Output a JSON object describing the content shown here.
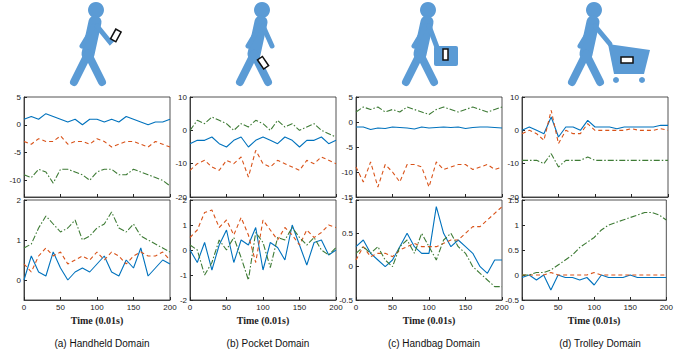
{
  "chart_data": [
    {
      "type": "line",
      "x": [
        0,
        10,
        20,
        30,
        40,
        50,
        60,
        70,
        80,
        90,
        100,
        110,
        120,
        130,
        140,
        150,
        160,
        170,
        180,
        190,
        200
      ],
      "xlim": [
        0,
        200
      ],
      "xticks": [
        0,
        50,
        100,
        150,
        200
      ],
      "ylim": [
        -13,
        5
      ],
      "yticks": [
        -10,
        -5,
        0,
        5
      ],
      "grid": false,
      "tick_labels": "y",
      "series": [
        {
          "color": "#0072BD",
          "line_style": "solid",
          "values": [
            1,
            1.5,
            1,
            2,
            1.5,
            1,
            0.5,
            1,
            0,
            1,
            1,
            0.5,
            1,
            0.5,
            1.5,
            1,
            0.5,
            0,
            0.5,
            0.5,
            1
          ]
        },
        {
          "color": "#D95319",
          "line_style": "dashed",
          "values": [
            -3,
            -3.5,
            -2.5,
            -3,
            -3,
            -2,
            -3.5,
            -3,
            -3,
            -3.5,
            -2.5,
            -3,
            -4,
            -3.5,
            -3,
            -3,
            -3.5,
            -4,
            -3,
            -3.5,
            -4
          ]
        },
        {
          "color": "#3E7B35",
          "line_style": "dashdot",
          "values": [
            -9,
            -9.5,
            -8,
            -8.5,
            -10.5,
            -8,
            -8,
            -8.5,
            -9,
            -10,
            -8.5,
            -8,
            -8,
            -9,
            -9,
            -8,
            -8.5,
            -9,
            -9.5,
            -10,
            -11
          ]
        }
      ]
    },
    {
      "type": "line",
      "x": [
        0,
        10,
        20,
        30,
        40,
        50,
        60,
        70,
        80,
        90,
        100,
        110,
        120,
        130,
        140,
        150,
        160,
        170,
        180,
        190,
        200
      ],
      "xlim": [
        0,
        200
      ],
      "xticks": [
        0,
        50,
        100,
        150,
        200
      ],
      "ylim": [
        -20,
        10
      ],
      "yticks": [
        -20,
        -10,
        0,
        10
      ],
      "grid": false,
      "tick_labels": "y",
      "series": [
        {
          "color": "#0072BD",
          "line_style": "solid",
          "values": [
            -4,
            -3,
            -3,
            -2,
            -4,
            -5,
            -3,
            -2,
            -5,
            -3,
            -2,
            -3,
            -4,
            -2,
            -3,
            -5,
            -3,
            -3,
            -2,
            -4,
            -3
          ]
        },
        {
          "color": "#D95319",
          "line_style": "dashed",
          "values": [
            -12,
            -10,
            -9,
            -11,
            -12,
            -9,
            -10,
            -8,
            -14,
            -6,
            -10,
            -11,
            -9,
            -10,
            -11,
            -12,
            -9,
            -10,
            -8,
            -9,
            -10
          ]
        },
        {
          "color": "#3E7B35",
          "line_style": "dashdot",
          "values": [
            0,
            3,
            2,
            4,
            3,
            2,
            0,
            2,
            1,
            3,
            2,
            0,
            3,
            1,
            2,
            0,
            1,
            2,
            0,
            -1,
            -2
          ]
        }
      ]
    },
    {
      "type": "line",
      "x": [
        0,
        10,
        20,
        30,
        40,
        50,
        60,
        70,
        80,
        90,
        100,
        110,
        120,
        130,
        140,
        150,
        160,
        170,
        180,
        190,
        200
      ],
      "xlim": [
        0,
        200
      ],
      "xticks": [
        0,
        50,
        100,
        150,
        200
      ],
      "ylim": [
        -15,
        5
      ],
      "yticks": [
        -15,
        -10,
        -5,
        0,
        5
      ],
      "grid": false,
      "tick_labels": "y",
      "series": [
        {
          "color": "#0072BD",
          "line_style": "solid",
          "values": [
            -1,
            -1,
            -1.5,
            -1.2,
            -1.3,
            -1,
            -1.1,
            -1.2,
            -1.4,
            -1,
            -1.2,
            -1.1,
            -1,
            -1.1,
            -1,
            -1.3,
            -1.1,
            -1,
            -1,
            -1.1,
            -1.2
          ]
        },
        {
          "color": "#D95319",
          "line_style": "dashed",
          "values": [
            -9,
            -12,
            -8,
            -13,
            -8.5,
            -10,
            -12,
            -8.5,
            -8.5,
            -9,
            -13,
            -8,
            -9.5,
            -9,
            -8.5,
            -8.5,
            -9.5,
            -9,
            -8.5,
            -9.5,
            -9
          ]
        },
        {
          "color": "#3E7B35",
          "line_style": "dashdot",
          "values": [
            2,
            3,
            2.5,
            3,
            2,
            2.5,
            2,
            3,
            2.5,
            2,
            1.5,
            2.5,
            3,
            2.5,
            2,
            2.5,
            3,
            2.5,
            2,
            2.5,
            3
          ]
        }
      ]
    },
    {
      "type": "line",
      "x": [
        0,
        10,
        20,
        30,
        40,
        50,
        60,
        70,
        80,
        90,
        100,
        110,
        120,
        130,
        140,
        150,
        160,
        170,
        180,
        190,
        200
      ],
      "xlim": [
        0,
        200
      ],
      "xticks": [
        0,
        50,
        100,
        150,
        200
      ],
      "ylim": [
        -20,
        10
      ],
      "yticks": [
        -20,
        -10,
        0,
        10
      ],
      "grid": false,
      "tick_labels": "y",
      "series": [
        {
          "color": "#0072BD",
          "line_style": "solid",
          "values": [
            0,
            1,
            0,
            -1,
            4,
            -2,
            1,
            1,
            0,
            3,
            1,
            1,
            1,
            0.5,
            1,
            1,
            1,
            1,
            1,
            1.5,
            1.5
          ]
        },
        {
          "color": "#D95319",
          "line_style": "dashed",
          "values": [
            -1,
            0,
            -1,
            -3,
            6,
            -4,
            0,
            -1,
            -1,
            2,
            0,
            0,
            0,
            0,
            0,
            0.5,
            0,
            0,
            0,
            0.5,
            0
          ]
        },
        {
          "color": "#3E7B35",
          "line_style": "dashdot",
          "values": [
            -9,
            -9,
            -9,
            -10,
            -7,
            -11,
            -9,
            -9,
            -9,
            -8,
            -9,
            -9,
            -9,
            -9,
            -9,
            -9,
            -9,
            -9,
            -9,
            -9,
            -9
          ]
        }
      ]
    },
    {
      "type": "line",
      "title": "(a) Handheld Domain",
      "xlabel": "Time (0.01s)",
      "x": [
        0,
        10,
        20,
        30,
        40,
        50,
        60,
        70,
        80,
        90,
        100,
        110,
        120,
        130,
        140,
        150,
        160,
        170,
        180,
        190,
        200
      ],
      "xlim": [
        0,
        200
      ],
      "xticks": [
        0,
        50,
        100,
        150,
        200
      ],
      "ylim": [
        -0.5,
        2
      ],
      "yticks": [
        0,
        1,
        2
      ],
      "grid": false,
      "series": [
        {
          "color": "#0072BD",
          "line_style": "solid",
          "values": [
            0,
            0.6,
            0.2,
            0.1,
            0.7,
            0.3,
            0,
            0.2,
            0.3,
            0.2,
            0.4,
            0.6,
            0.2,
            0.1,
            0.5,
            0.3,
            0.8,
            0.1,
            0.3,
            0.5,
            0.4
          ]
        },
        {
          "color": "#D95319",
          "line_style": "dashed",
          "values": [
            0.4,
            0.2,
            0.6,
            0.8,
            0.6,
            0.7,
            0.4,
            0.5,
            0.6,
            0.5,
            0.7,
            0.5,
            0.7,
            0.6,
            0.4,
            0.6,
            0.7,
            0.6,
            0.6,
            0.7,
            0.5
          ]
        },
        {
          "color": "#3E7B35",
          "line_style": "dashdot",
          "values": [
            0.8,
            0.9,
            1.3,
            1.6,
            1.4,
            1.2,
            1.3,
            1.5,
            1.0,
            1.1,
            1.3,
            1.4,
            1.7,
            1.3,
            1.2,
            1.4,
            1.1,
            1.0,
            0.9,
            0.8,
            0.7
          ]
        }
      ]
    },
    {
      "type": "line",
      "title": "(b) Pocket Domain",
      "xlabel": "Time (0.01s)",
      "x": [
        0,
        10,
        20,
        30,
        40,
        50,
        60,
        70,
        80,
        90,
        100,
        110,
        120,
        130,
        140,
        150,
        160,
        170,
        180,
        190,
        200
      ],
      "xlim": [
        0,
        200
      ],
      "xticks": [
        0,
        50,
        100,
        150,
        200
      ],
      "ylim": [
        -2,
        2
      ],
      "yticks": [
        -2,
        -1,
        0,
        1,
        2
      ],
      "grid": false,
      "series": [
        {
          "color": "#0072BD",
          "line_style": "solid",
          "values": [
            0,
            -0.5,
            0.3,
            -0.8,
            0.2,
            0.8,
            -0.5,
            0.4,
            0.2,
            0.9,
            -0.8,
            0.3,
            0.1,
            -0.4,
            1.0,
            0.2,
            -0.6,
            0.3,
            0.4,
            -0.2,
            0
          ]
        },
        {
          "color": "#D95319",
          "line_style": "dashed",
          "values": [
            0.5,
            0.8,
            1.5,
            1.6,
            0.9,
            1.2,
            0.6,
            1.3,
            0.6,
            -0.5,
            1.2,
            0.8,
            0.4,
            0.9,
            0.6,
            0.2,
            0.8,
            0.5,
            0.7,
            1.0,
            0.9
          ]
        },
        {
          "color": "#3E7B35",
          "line_style": "dashdot",
          "values": [
            0.2,
            0,
            -1,
            -0.5,
            0.4,
            0,
            0.5,
            -0.3,
            -1.2,
            0.7,
            0.3,
            -0.7,
            0.5,
            0.4,
            0.9,
            0.5,
            0.2,
            0.5,
            0,
            -0.2,
            0.1
          ]
        }
      ]
    },
    {
      "type": "line",
      "title": "(c) Handbag Domain",
      "xlabel": "Time (0.01s)",
      "x": [
        0,
        10,
        20,
        30,
        40,
        50,
        60,
        70,
        80,
        90,
        100,
        110,
        120,
        130,
        140,
        150,
        160,
        170,
        180,
        190,
        200
      ],
      "xlim": [
        0,
        200
      ],
      "xticks": [
        0,
        50,
        100,
        150,
        200
      ],
      "ylim": [
        -0.5,
        1
      ],
      "yticks": [
        -0.5,
        0,
        0.5,
        1
      ],
      "grid": false,
      "series": [
        {
          "color": "#0072BD",
          "line_style": "solid",
          "values": [
            0.3,
            0.4,
            0.2,
            0.1,
            0.0,
            0.1,
            0.3,
            0.5,
            0.3,
            0.2,
            0.2,
            0.9,
            0.5,
            0.3,
            0.4,
            0.3,
            0.2,
            0.0,
            -0.1,
            0.1,
            0.1
          ]
        },
        {
          "color": "#D95319",
          "line_style": "dashed",
          "values": [
            0.1,
            0.3,
            0.15,
            0.2,
            0.2,
            0.15,
            0.25,
            0.3,
            0.35,
            0.3,
            0.3,
            0.3,
            0.35,
            0.4,
            0.4,
            0.5,
            0.6,
            0.6,
            0.7,
            0.8,
            0.9
          ]
        },
        {
          "color": "#3E7B35",
          "line_style": "dashdot",
          "values": [
            0.2,
            0.3,
            0.2,
            0.3,
            0.1,
            0.0,
            0.3,
            0.4,
            0.2,
            0.5,
            0.3,
            0.1,
            0.4,
            0.5,
            0.3,
            0.2,
            0.0,
            -0.1,
            -0.2,
            -0.3,
            -0.3
          ]
        }
      ]
    },
    {
      "type": "line",
      "title": "(d) Trolley Domain",
      "xlabel": "Time (0.01s)",
      "x": [
        0,
        10,
        20,
        30,
        40,
        50,
        60,
        70,
        80,
        90,
        100,
        110,
        120,
        130,
        140,
        150,
        160,
        170,
        180,
        190,
        200
      ],
      "xlim": [
        0,
        200
      ],
      "xticks": [
        0,
        50,
        100,
        150,
        200
      ],
      "ylim": [
        -0.5,
        1.5
      ],
      "yticks": [
        -0.5,
        0,
        0.5,
        1,
        1.5
      ],
      "grid": false,
      "series": [
        {
          "color": "#0072BD",
          "line_style": "solid",
          "values": [
            -0.05,
            0,
            -0.1,
            0,
            -0.3,
            0,
            -0.05,
            -0.05,
            -0.1,
            -0.05,
            -0.2,
            0,
            -0.05,
            -0.05,
            -0.05,
            0,
            -0.05,
            -0.05,
            -0.05,
            -0.05,
            -0.05
          ]
        },
        {
          "color": "#D95319",
          "line_style": "dashed",
          "values": [
            0,
            0,
            0,
            0,
            0.05,
            0,
            0,
            0,
            0,
            0,
            0.05,
            0,
            0,
            0,
            0,
            0,
            0,
            0,
            0,
            0,
            0
          ]
        },
        {
          "color": "#3E7B35",
          "line_style": "dashdot",
          "values": [
            0,
            0,
            0.05,
            0.05,
            0.1,
            0.2,
            0.3,
            0.4,
            0.55,
            0.65,
            0.75,
            0.9,
            1.0,
            1.05,
            1.1,
            1.15,
            1.2,
            1.25,
            1.25,
            1.2,
            1.1
          ]
        }
      ]
    }
  ]
}
